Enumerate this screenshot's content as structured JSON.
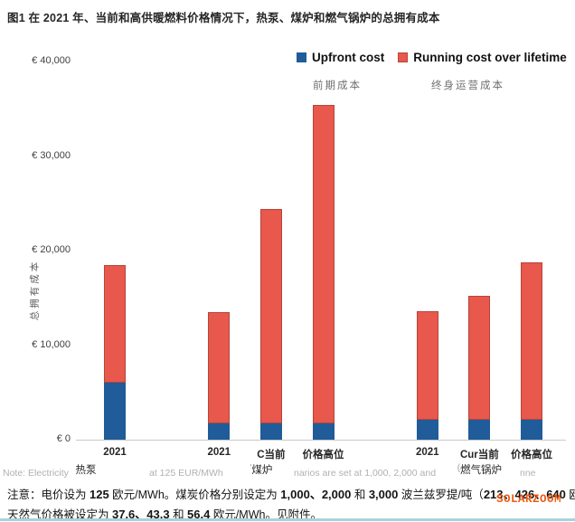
{
  "page": {
    "title": "图1 在 2021 年、当前和高供暖燃料价格情况下，热泵、煤炉和燃气锅炉的总拥有成本",
    "watermark": "SOLARZOOM",
    "watermark_color": "#EE5A14",
    "footer_line_color": "#A9D2DC"
  },
  "legend": {
    "items": [
      {
        "label": "Upfront cost",
        "label_zh": "前期成本",
        "color": "#1F5C99",
        "border": "#17497C"
      },
      {
        "label": "Running cost over lifetime",
        "label_zh": "终身运营成本",
        "color": "#E8584C",
        "border": "#B6453A"
      }
    ]
  },
  "notes": {
    "faint_en_fragments": [
      "Note: Electricity",
      "at 125 EUR/MWh",
      "narios are set at 1,000, 2,000 and",
      "nne"
    ],
    "zh_line1_segments": [
      {
        "t": "注意：电价设为 ",
        "b": false
      },
      {
        "t": "125",
        "b": true
      },
      {
        "t": " 欧元/MWh。煤炭价格分别设定为 ",
        "b": false
      },
      {
        "t": "1,000、2,000",
        "b": true
      },
      {
        "t": " 和 ",
        "b": false
      },
      {
        "t": "3,000",
        "b": true
      },
      {
        "t": " 波兰兹罗提/吨（",
        "b": false
      },
      {
        "t": "213、426、640",
        "b": true
      },
      {
        "t": " 欧元/吨）。",
        "b": false
      }
    ],
    "zh_line2_segments": [
      {
        "t": "天然气价格被设定为 ",
        "b": false
      },
      {
        "t": "37.6、43.3",
        "b": true
      },
      {
        "t": " 和 ",
        "b": false
      },
      {
        "t": "56.4",
        "b": true
      },
      {
        "t": " 欧元/MWh。见附件。",
        "b": false
      }
    ]
  },
  "chart_data": {
    "type": "bar",
    "stacked": true,
    "title": "图1 在 2021 年、当前和高供暖燃料价格情况下，热泵、煤炉和燃气锅炉的总拥有成本",
    "xlabel": "",
    "ylabel": "总拥有成本",
    "ylim": [
      0,
      40000
    ],
    "grid": false,
    "legend_position": "top-right",
    "currency": "EUR",
    "yticks": [
      {
        "value": 0,
        "label": "€ 0"
      },
      {
        "value": 10000,
        "label": "€ 10,000"
      },
      {
        "value": 20000,
        "label": "€ 20,000"
      },
      {
        "value": 30000,
        "label": "€ 30,000"
      },
      {
        "value": 40000,
        "label": "€ 40,000"
      }
    ],
    "series_names": [
      "Upfront cost",
      "Running cost over lifetime"
    ],
    "colors": {
      "upfront": "#1F5C99",
      "running": "#E8584C",
      "running_border": "#B6453A"
    },
    "groups": [
      {
        "group_label": "热泵",
        "group_prefix": "",
        "bars": [
          {
            "label": "2021",
            "upfront_cost": 6000,
            "running_cost": 12500,
            "total": 18500
          }
        ]
      },
      {
        "group_label": "煤炉",
        "group_prefix": "'",
        "bars": [
          {
            "label": "2021",
            "upfront_cost": 1700,
            "running_cost": 11800,
            "total": 13500
          },
          {
            "label": "C当前",
            "upfront_cost": 1700,
            "running_cost": 22700,
            "total": 24400
          },
          {
            "label": "价格高位",
            "upfront_cost": 1700,
            "running_cost": 33700,
            "total": 35400
          }
        ]
      },
      {
        "group_label": "燃气锅炉",
        "group_prefix": "(",
        "bars": [
          {
            "label": "2021",
            "upfront_cost": 2100,
            "running_cost": 11500,
            "total": 13600
          },
          {
            "label": "Cur当前",
            "upfront_cost": 2100,
            "running_cost": 13100,
            "total": 15200
          },
          {
            "label": "价格高位",
            "upfront_cost": 2100,
            "running_cost": 16700,
            "total": 18800
          }
        ]
      }
    ]
  }
}
